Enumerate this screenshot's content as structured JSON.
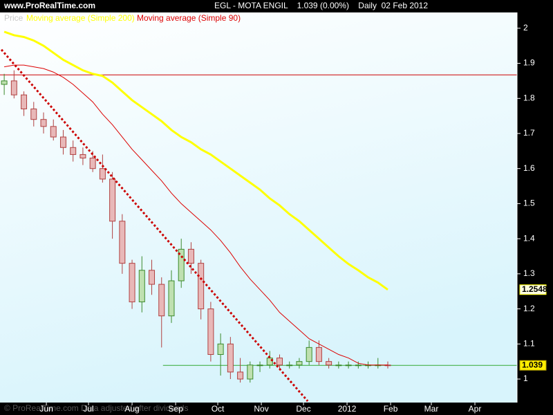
{
  "chart_data": {
    "type": "candlestick",
    "source": "www.ProRealTime.com",
    "title": "EGL - MOTA ENGIL    1.039 (0.00%)    Daily  02 Feb 2012",
    "footer": "© ProRealTime.com Data adjusted after dividends",
    "xlim": [
      "2011-04-29",
      "2012-05-01"
    ],
    "xticks": [
      {
        "value": "2011-06-01",
        "label": "Jun"
      },
      {
        "value": "2011-07-01",
        "label": "Jul"
      },
      {
        "value": "2011-08-01",
        "label": "Aug"
      },
      {
        "value": "2011-09-01",
        "label": "Sep"
      },
      {
        "value": "2011-10-01",
        "label": "Oct"
      },
      {
        "value": "2011-11-01",
        "label": "Nov"
      },
      {
        "value": "2011-12-01",
        "label": "Dec"
      },
      {
        "value": "2012-01-01",
        "label": "2012"
      },
      {
        "value": "2012-02-01",
        "label": "Feb"
      },
      {
        "value": "2012-03-01",
        "label": "Mar"
      },
      {
        "value": "2012-04-01",
        "label": "Apr"
      }
    ],
    "ylim": [
      0.933,
      2.045
    ],
    "yticks": [
      1,
      1.1,
      1.2,
      1.3,
      1.4,
      1.5,
      1.6,
      1.7,
      1.8,
      1.9,
      2
    ],
    "x": [
      "2011-05-02",
      "2011-05-09",
      "2011-05-16",
      "2011-05-23",
      "2011-05-30",
      "2011-06-06",
      "2011-06-13",
      "2011-06-20",
      "2011-06-27",
      "2011-07-04",
      "2011-07-11",
      "2011-07-18",
      "2011-07-25",
      "2011-08-01",
      "2011-08-08",
      "2011-08-15",
      "2011-08-22",
      "2011-08-29",
      "2011-09-05",
      "2011-09-12",
      "2011-09-19",
      "2011-09-26",
      "2011-10-03",
      "2011-10-10",
      "2011-10-17",
      "2011-10-24",
      "2011-10-31",
      "2011-11-07",
      "2011-11-14",
      "2011-11-21",
      "2011-11-28",
      "2011-12-05",
      "2011-12-12",
      "2011-12-19",
      "2011-12-26",
      "2012-01-02",
      "2012-01-09",
      "2012-01-16",
      "2012-01-23",
      "2012-01-30"
    ],
    "candles": {
      "name": "Price",
      "legend_color": "#c8c8c8",
      "up_color": "#3a8a2a",
      "down_color": "#b04040",
      "open": [
        1.84,
        1.85,
        1.81,
        1.77,
        1.74,
        1.72,
        1.69,
        1.66,
        1.64,
        1.63,
        1.6,
        1.57,
        1.45,
        1.33,
        1.22,
        1.31,
        1.27,
        1.18,
        1.28,
        1.37,
        1.33,
        1.2,
        1.07,
        1.1,
        1.02,
        1.0,
        1.04,
        1.04,
        1.06,
        1.04,
        1.04,
        1.05,
        1.09,
        1.05,
        1.04,
        1.04,
        1.04,
        1.04,
        1.04,
        1.04
      ],
      "high": [
        1.87,
        1.88,
        1.82,
        1.79,
        1.76,
        1.74,
        1.71,
        1.68,
        1.66,
        1.65,
        1.64,
        1.59,
        1.47,
        1.34,
        1.35,
        1.34,
        1.29,
        1.31,
        1.4,
        1.39,
        1.34,
        1.22,
        1.13,
        1.12,
        1.06,
        1.05,
        1.05,
        1.08,
        1.07,
        1.05,
        1.06,
        1.11,
        1.11,
        1.06,
        1.05,
        1.05,
        1.05,
        1.05,
        1.06,
        1.05
      ],
      "low": [
        1.81,
        1.8,
        1.75,
        1.72,
        1.7,
        1.68,
        1.64,
        1.62,
        1.61,
        1.59,
        1.56,
        1.4,
        1.3,
        1.2,
        1.19,
        1.24,
        1.09,
        1.16,
        1.26,
        1.3,
        1.17,
        1.05,
        1.01,
        1.0,
        0.99,
        0.99,
        1.02,
        1.03,
        1.03,
        1.03,
        1.03,
        1.04,
        1.04,
        1.03,
        1.03,
        1.03,
        1.03,
        1.03,
        1.03,
        1.03
      ],
      "close": [
        1.85,
        1.81,
        1.77,
        1.74,
        1.72,
        1.69,
        1.66,
        1.64,
        1.63,
        1.6,
        1.57,
        1.45,
        1.33,
        1.22,
        1.31,
        1.27,
        1.18,
        1.28,
        1.37,
        1.33,
        1.2,
        1.07,
        1.1,
        1.02,
        1.0,
        1.04,
        1.04,
        1.06,
        1.04,
        1.04,
        1.05,
        1.09,
        1.05,
        1.04,
        1.04,
        1.04,
        1.04,
        1.04,
        1.04,
        1.039
      ]
    },
    "series": [
      {
        "name": "Moving average (Simple 200)",
        "color": "#ffff00",
        "width": 3,
        "values": [
          1.99,
          1.98,
          1.975,
          1.965,
          1.95,
          1.93,
          1.91,
          1.895,
          1.88,
          1.87,
          1.864,
          1.845,
          1.82,
          1.795,
          1.775,
          1.755,
          1.735,
          1.71,
          1.69,
          1.675,
          1.655,
          1.64,
          1.62,
          1.6,
          1.58,
          1.56,
          1.54,
          1.515,
          1.495,
          1.47,
          1.45,
          1.425,
          1.4,
          1.375,
          1.35,
          1.328,
          1.31,
          1.29,
          1.275,
          1.2548
        ]
      },
      {
        "name": "Moving average (Simple 90)",
        "color": "#dd0000",
        "width": 1,
        "values": [
          1.89,
          1.895,
          1.895,
          1.89,
          1.885,
          1.875,
          1.86,
          1.84,
          1.815,
          1.79,
          1.755,
          1.725,
          1.69,
          1.655,
          1.625,
          1.595,
          1.565,
          1.53,
          1.5,
          1.475,
          1.45,
          1.425,
          1.395,
          1.36,
          1.32,
          1.285,
          1.255,
          1.225,
          1.19,
          1.165,
          1.14,
          1.115,
          1.1,
          1.085,
          1.07,
          1.06,
          1.045,
          1.04,
          1.04,
          1.04
        ]
      }
    ],
    "trendline": {
      "x": [
        "2011-04-30",
        "2011-12-04"
      ],
      "values": [
        1.939,
        0.937
      ],
      "color": "#cc0000"
    },
    "hlines": [
      {
        "value": 1.867,
        "color": "#cc0000",
        "x_start": "2011-04-29"
      },
      {
        "value": 1.039,
        "color": "#33aa33",
        "x_start": "2011-08-23"
      }
    ]
  }
}
